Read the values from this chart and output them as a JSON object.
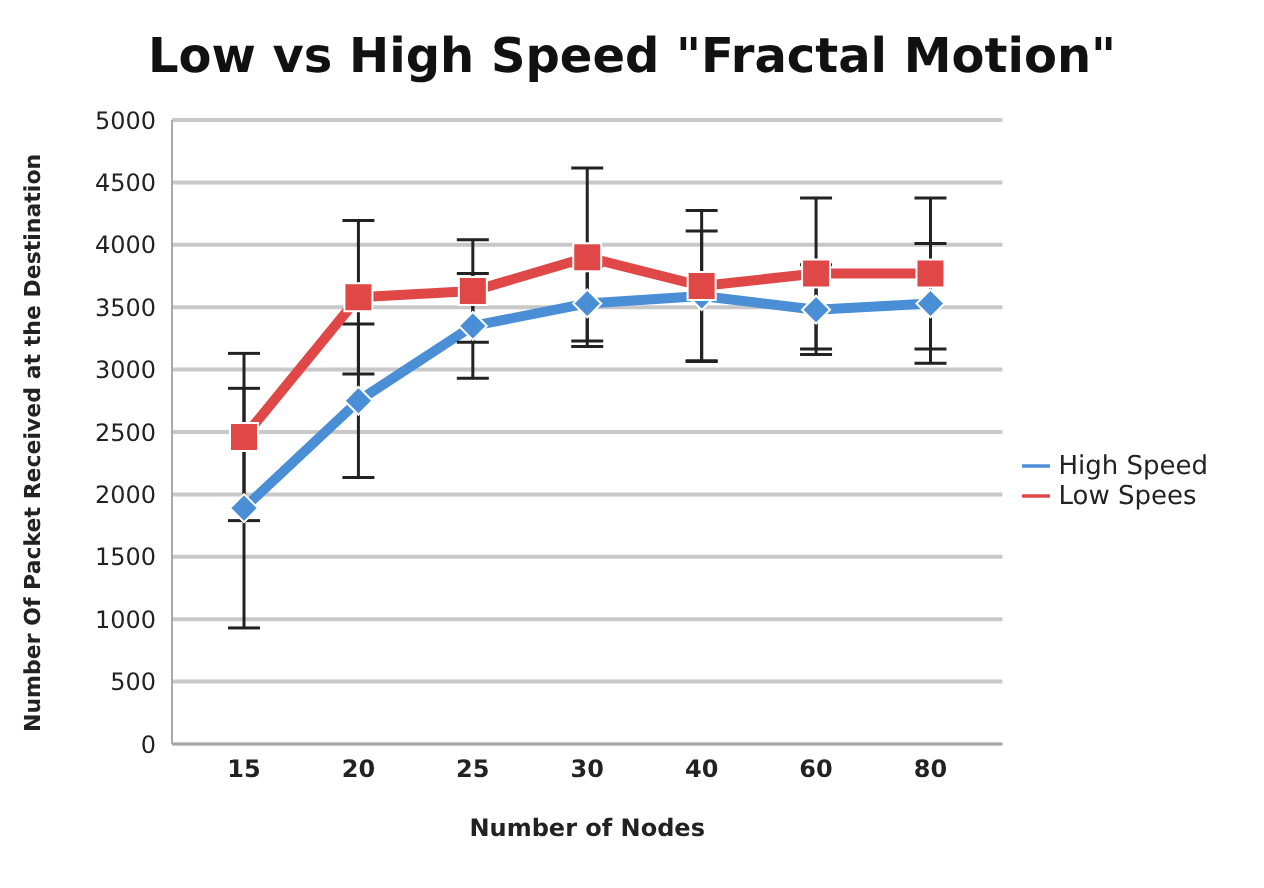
{
  "chart_data": {
    "type": "line",
    "title": "Low vs High Speed \"Fractal Motion\"",
    "xlabel": "Number of Nodes",
    "ylabel": "Number Of Packet Received at the Destination",
    "categories": [
      "15",
      "20",
      "25",
      "30",
      "40",
      "60",
      "80"
    ],
    "series": [
      {
        "name": "High Speed",
        "color": "#4a8fd6",
        "marker": "diamond",
        "values": [
          1890,
          2750,
          3350,
          3530,
          3590,
          3480,
          3530
        ],
        "errors": [
          960,
          615,
          420,
          300,
          520,
          360,
          480
        ]
      },
      {
        "name": "Low Spees",
        "color": "#e04848",
        "marker": "square",
        "values": [
          2460,
          3580,
          3630,
          3900,
          3670,
          3770,
          3770
        ],
        "errors": [
          670,
          615,
          410,
          715,
          605,
          605,
          605
        ]
      }
    ],
    "ylim": [
      0,
      5000
    ],
    "yticks": [
      0,
      500,
      1000,
      1500,
      2000,
      2500,
      3000,
      3500,
      4000,
      4500,
      5000
    ],
    "grid": "y",
    "legend": "right",
    "line_style": "solid"
  }
}
